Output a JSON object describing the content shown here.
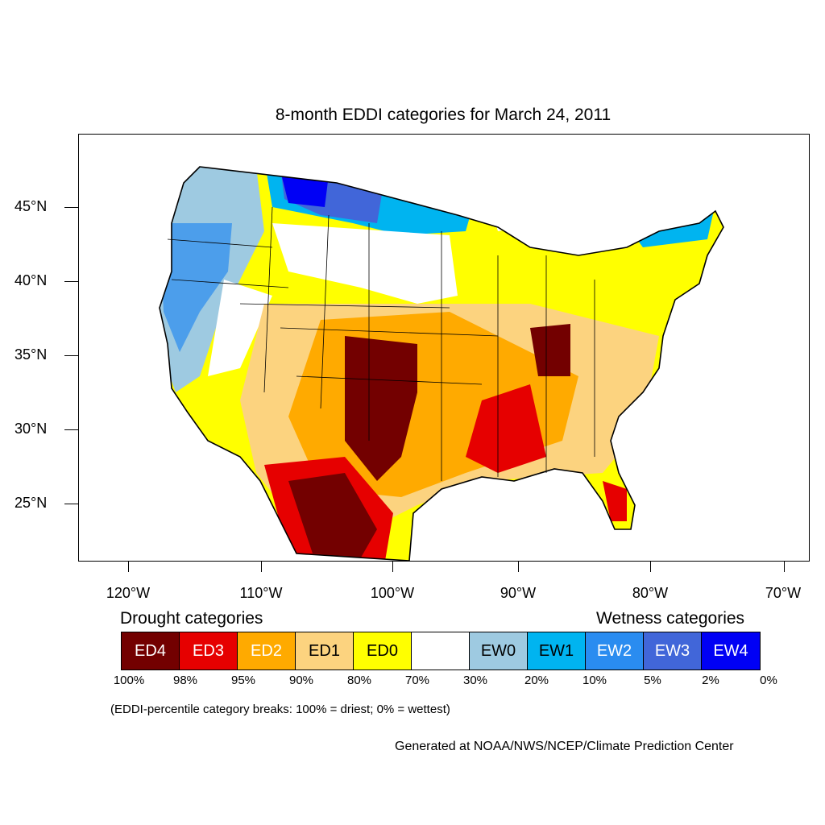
{
  "title": "8-month EDDI categories for March 24, 2011",
  "lat_labels": [
    "45°N",
    "40°N",
    "35°N",
    "30°N",
    "25°N"
  ],
  "lon_labels": [
    "120°W",
    "110°W",
    "100°W",
    "90°W",
    "80°W",
    "70°W"
  ],
  "drought_heading": "Drought categories",
  "wetness_heading": "Wetness categories",
  "legend": [
    {
      "label": "ED4",
      "color": "#730000",
      "text_color": "#ffffff"
    },
    {
      "label": "ED3",
      "color": "#e60000",
      "text_color": "#ffffff"
    },
    {
      "label": "ED2",
      "color": "#ffaa00",
      "text_color": "#ffffff"
    },
    {
      "label": "ED1",
      "color": "#fcd37f",
      "text_color": "#000000"
    },
    {
      "label": "ED0",
      "color": "#ffff00",
      "text_color": "#000000"
    },
    {
      "label": "",
      "color": "#ffffff",
      "text_color": "#000000"
    },
    {
      "label": "EW0",
      "color": "#9ecae1",
      "text_color": "#000000"
    },
    {
      "label": "EW1",
      "color": "#00b4f0",
      "text_color": "#000000"
    },
    {
      "label": "EW2",
      "color": "#2a8cf0",
      "text_color": "#ffffff"
    },
    {
      "label": "EW3",
      "color": "#4166d9",
      "text_color": "#ffffff"
    },
    {
      "label": "EW4",
      "color": "#0000f5",
      "text_color": "#ffffff"
    }
  ],
  "breaks": [
    "100%",
    "98%",
    "95%",
    "90%",
    "80%",
    "70%",
    "30%",
    "20%",
    "10%",
    "5%",
    "2%",
    "0%"
  ],
  "note": "(EDDI-percentile category breaks: 100% = driest; 0% = wettest)",
  "credit": "Generated at NOAA/NWS/NCEP/Climate Prediction Center"
}
